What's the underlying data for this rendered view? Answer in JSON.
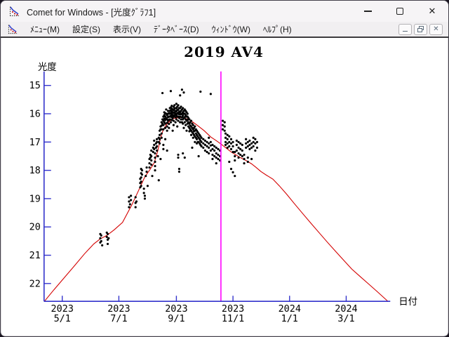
{
  "window": {
    "title": "Comet for Windows - [光度ｸﾞﾗﾌ1]",
    "caption_buttons": [
      "minimize",
      "maximize",
      "close"
    ]
  },
  "menubar": {
    "items": [
      {
        "label": "ﾒﾆｭｰ(M)"
      },
      {
        "label": "設定(S)"
      },
      {
        "label": "表示(V)"
      },
      {
        "label": "ﾃﾞｰﾀﾍﾞｰｽ(D)"
      },
      {
        "label": "ｳｨﾝﾄﾞｳ(W)"
      },
      {
        "label": "ﾍﾙﾌﾟ(H)"
      }
    ],
    "mdi_buttons": [
      "minimize",
      "restore",
      "close"
    ]
  },
  "chart_data": {
    "type": "scatter",
    "title": "2019 AV4",
    "xlabel": "日付",
    "ylabel": "光度",
    "y_axis": {
      "ticks": [
        15,
        16,
        17,
        18,
        19,
        20,
        21,
        22
      ],
      "inverted": true
    },
    "x_axis": {
      "ticks": [
        {
          "year": "2023",
          "date": "5/1",
          "day": 0
        },
        {
          "year": "2023",
          "date": "7/1",
          "day": 61
        },
        {
          "year": "2023",
          "date": "9/1",
          "day": 123
        },
        {
          "year": "2023",
          "date": "11/1",
          "day": 184
        },
        {
          "year": "2024",
          "date": "1/1",
          "day": 245
        },
        {
          "year": "2024",
          "date": "3/1",
          "day": 306
        }
      ]
    },
    "colors": {
      "axis": "#3333cc",
      "curve": "#d40000",
      "points": "#000000",
      "marker_line": "#ff00ff",
      "text": "#000000"
    },
    "current_date_marker_day": 171,
    "model_curve": [
      [
        -19,
        22.62
      ],
      [
        -9,
        22.22
      ],
      [
        2,
        21.8
      ],
      [
        13,
        21.38
      ],
      [
        24,
        20.95
      ],
      [
        34,
        20.6
      ],
      [
        41,
        20.42
      ],
      [
        48,
        20.3
      ],
      [
        56,
        20.1
      ],
      [
        65,
        19.84
      ],
      [
        75,
        19.22
      ],
      [
        82,
        18.73
      ],
      [
        89,
        18.23
      ],
      [
        94,
        18.0
      ],
      [
        99,
        17.74
      ],
      [
        103,
        17.3
      ],
      [
        106,
        16.85
      ],
      [
        109,
        16.55
      ],
      [
        112,
        16.4
      ],
      [
        116,
        16.25
      ],
      [
        120,
        16.17
      ],
      [
        124,
        16.14
      ],
      [
        130,
        16.13
      ],
      [
        136,
        16.2
      ],
      [
        141,
        16.3
      ],
      [
        146,
        16.42
      ],
      [
        153,
        16.6
      ],
      [
        160,
        16.82
      ],
      [
        166,
        16.95
      ],
      [
        171,
        17.07
      ],
      [
        177,
        17.22
      ],
      [
        182,
        17.35
      ],
      [
        188,
        17.47
      ],
      [
        193,
        17.57
      ],
      [
        199,
        17.67
      ],
      [
        204,
        17.77
      ],
      [
        209,
        17.9
      ],
      [
        214,
        18.04
      ],
      [
        220,
        18.17
      ],
      [
        227,
        18.31
      ],
      [
        234,
        18.55
      ],
      [
        242,
        18.85
      ],
      [
        250,
        19.17
      ],
      [
        259,
        19.52
      ],
      [
        268,
        19.87
      ],
      [
        277,
        20.21
      ],
      [
        286,
        20.55
      ],
      [
        295,
        20.88
      ],
      [
        304,
        21.2
      ],
      [
        312,
        21.49
      ],
      [
        321,
        21.75
      ],
      [
        330,
        22.01
      ],
      [
        340,
        22.3
      ],
      [
        351,
        22.65
      ]
    ],
    "observation_stacks": [
      [
        41,
        [
          20.25,
          20.4,
          20.55
        ]
      ],
      [
        42,
        [
          20.3,
          20.5
        ]
      ],
      [
        43,
        [
          20.65
        ]
      ],
      [
        48,
        [
          20.2,
          20.35
        ]
      ],
      [
        49,
        [
          20.25,
          20.45,
          20.6
        ]
      ],
      [
        50,
        [
          20.4
        ]
      ],
      [
        72,
        [
          18.95,
          19.1,
          19.3
        ]
      ],
      [
        73,
        [
          19.2
        ]
      ],
      [
        74,
        [
          18.9,
          19.05
        ]
      ],
      [
        79,
        [
          18.95,
          19.15,
          19.3
        ]
      ],
      [
        80,
        [
          19.1
        ]
      ],
      [
        84,
        [
          18.3,
          18.45,
          18.6
        ]
      ],
      [
        85,
        [
          17.95,
          18.1,
          18.25,
          18.4,
          18.55
        ]
      ],
      [
        86,
        [
          18.0,
          18.15
        ]
      ],
      [
        88,
        [
          18.65,
          18.8
        ]
      ],
      [
        89,
        [
          18.9,
          19.0
        ]
      ],
      [
        90,
        [
          18.2
        ]
      ],
      [
        91,
        [
          17.9,
          18.05
        ]
      ],
      [
        92,
        [
          18.55
        ]
      ],
      [
        94,
        [
          17.6,
          17.75,
          17.9
        ]
      ],
      [
        95,
        [
          17.45,
          17.55
        ]
      ],
      [
        96,
        [
          17.3,
          17.5,
          17.65,
          17.8
        ]
      ],
      [
        97,
        [
          18.2
        ]
      ],
      [
        98,
        [
          17.2,
          17.35
        ]
      ],
      [
        99,
        [
          16.95,
          17.1,
          17.25
        ]
      ],
      [
        100,
        [
          17.4,
          17.55,
          17.7,
          17.85,
          18.0
        ]
      ],
      [
        101,
        [
          17.05,
          17.2
        ]
      ],
      [
        102,
        [
          16.9,
          17.0,
          17.15,
          17.3
        ]
      ],
      [
        103,
        [
          17.5
        ]
      ],
      [
        104,
        [
          16.85,
          17.0,
          18.35
        ]
      ],
      [
        105,
        [
          16.6,
          16.75,
          16.9,
          17.05
        ]
      ],
      [
        106,
        [
          16.45,
          16.55,
          17.6
        ]
      ],
      [
        107,
        [
          16.3,
          16.42,
          16.55,
          16.7,
          16.85
        ]
      ],
      [
        108,
        [
          15.27,
          16.2,
          16.35
        ]
      ],
      [
        109,
        [
          16.1,
          16.25,
          16.4,
          16.55,
          17.1,
          17.25
        ]
      ],
      [
        110,
        [
          15.95,
          16.05,
          16.18,
          16.3
        ]
      ],
      [
        111,
        [
          15.98,
          16.1,
          16.22,
          16.35,
          16.5,
          16.9
        ]
      ],
      [
        112,
        [
          15.85,
          16.0,
          16.15
        ]
      ],
      [
        113,
        [
          16.05,
          16.2,
          16.32,
          16.45,
          16.6,
          17.3
        ]
      ],
      [
        114,
        [
          15.9,
          16.0,
          16.12,
          16.25
        ]
      ],
      [
        115,
        [
          15.98,
          16.1,
          16.22,
          16.36,
          16.5
        ]
      ],
      [
        116,
        [
          15.8,
          15.9,
          16.0,
          16.1,
          16.2
        ]
      ],
      [
        117,
        [
          15.2,
          15.78,
          15.88,
          15.98,
          16.08,
          16.3
        ]
      ],
      [
        118,
        [
          15.72,
          15.82,
          15.92,
          16.02,
          16.12,
          16.22
        ]
      ],
      [
        119,
        [
          15.85,
          15.95,
          16.05,
          16.15,
          16.6
        ]
      ],
      [
        120,
        [
          15.75,
          15.87,
          15.97,
          16.1,
          16.25,
          16.4
        ]
      ],
      [
        121,
        [
          15.7,
          15.82,
          15.95,
          16.05
        ]
      ],
      [
        122,
        [
          15.8,
          15.9,
          16.0,
          16.12,
          16.3
        ]
      ],
      [
        123,
        [
          15.65,
          15.8,
          15.92,
          16.05,
          16.2
        ]
      ],
      [
        124,
        [
          15.75,
          15.87,
          16.0,
          16.1,
          16.45
        ]
      ],
      [
        125,
        [
          15.7,
          15.85,
          15.97,
          16.1,
          16.25,
          17.45,
          17.55
        ]
      ],
      [
        126,
        [
          15.8,
          15.92,
          16.02,
          16.15,
          17.95,
          18.05
        ]
      ],
      [
        127,
        [
          15.35,
          15.8,
          15.95,
          16.1,
          16.3
        ]
      ],
      [
        128,
        [
          15.75,
          15.9,
          16.02,
          16.2
        ]
      ],
      [
        129,
        [
          15.15,
          15.85,
          16.0,
          16.12,
          16.3
        ]
      ],
      [
        130,
        [
          15.8,
          15.95,
          16.07,
          16.2,
          16.35,
          17.4
        ]
      ],
      [
        131,
        [
          15.25,
          15.9,
          16.0,
          16.15,
          16.5
        ]
      ],
      [
        132,
        [
          15.85,
          16.0,
          16.12,
          16.3,
          17.55
        ]
      ],
      [
        133,
        [
          15.9,
          16.05,
          16.2,
          16.4
        ]
      ],
      [
        134,
        [
          15.95,
          16.1,
          16.25,
          16.6
        ]
      ],
      [
        135,
        [
          16.0,
          16.1,
          16.22,
          16.35
        ]
      ],
      [
        136,
        [
          16.15,
          16.3,
          16.45
        ]
      ],
      [
        137,
        [
          16.2,
          16.35,
          16.5,
          16.62
        ]
      ],
      [
        138,
        [
          16.3,
          16.42,
          16.55
        ]
      ],
      [
        139,
        [
          16.25,
          16.45,
          16.6,
          16.75
        ]
      ],
      [
        140,
        [
          16.35,
          16.5,
          16.65,
          17.2
        ]
      ],
      [
        141,
        [
          16.4,
          16.55,
          16.7,
          16.85
        ]
      ],
      [
        142,
        [
          16.5,
          16.62,
          16.75
        ]
      ],
      [
        143,
        [
          16.45,
          16.6,
          16.8,
          17.0
        ]
      ],
      [
        144,
        [
          16.55,
          16.7,
          16.85
        ]
      ],
      [
        145,
        [
          16.6,
          16.75,
          16.9,
          17.05
        ]
      ],
      [
        146,
        [
          16.65,
          16.8,
          17.0
        ]
      ],
      [
        147,
        [
          16.7,
          16.85,
          17.0,
          17.5
        ]
      ],
      [
        148,
        [
          16.75,
          16.9,
          17.05
        ]
      ],
      [
        149,
        [
          15.22,
          16.8,
          16.95,
          17.1
        ]
      ],
      [
        150,
        [
          16.85,
          17.0,
          17.15
        ]
      ],
      [
        152,
        [
          16.9,
          17.05,
          17.2
        ]
      ],
      [
        154,
        [
          16.95,
          17.1,
          17.3
        ]
      ],
      [
        156,
        [
          17.0,
          17.15,
          17.35
        ]
      ],
      [
        158,
        [
          16.85,
          17.05,
          17.2,
          17.4
        ]
      ],
      [
        160,
        [
          15.3,
          17.0,
          17.12,
          17.3
        ]
      ],
      [
        162,
        [
          17.1,
          17.25,
          17.45,
          17.6
        ]
      ],
      [
        164,
        [
          17.15,
          17.3,
          17.5
        ]
      ],
      [
        166,
        [
          17.2,
          17.4,
          17.55,
          17.75
        ]
      ],
      [
        168,
        [
          17.25,
          17.45,
          17.6
        ]
      ],
      [
        170,
        [
          17.3,
          17.5,
          17.65
        ]
      ],
      [
        173,
        [
          16.25,
          16.4,
          16.55
        ]
      ],
      [
        175,
        [
          16.3,
          16.45,
          16.6
        ]
      ],
      [
        176,
        [
          16.7,
          16.85,
          17.0,
          17.1
        ]
      ],
      [
        178,
        [
          16.75,
          16.9,
          17.05,
          17.2
        ]
      ],
      [
        180,
        [
          16.8,
          17.0,
          17.15,
          17.7
        ]
      ],
      [
        182,
        [
          16.9,
          17.05,
          17.25,
          17.95
        ]
      ],
      [
        184,
        [
          17.0,
          17.15,
          17.35,
          18.07
        ]
      ],
      [
        186,
        [
          17.35,
          17.5,
          17.65,
          18.2
        ]
      ],
      [
        188,
        [
          16.95,
          17.1,
          17.3
        ]
      ],
      [
        190,
        [
          17.0,
          17.2,
          17.4,
          17.55
        ]
      ],
      [
        192,
        [
          17.05,
          17.25,
          17.45
        ]
      ],
      [
        194,
        [
          17.1,
          17.3,
          17.5
        ]
      ],
      [
        196,
        [
          17.45,
          17.6,
          17.75
        ]
      ],
      [
        198,
        [
          16.9,
          17.05,
          17.2
        ]
      ],
      [
        200,
        [
          17.0,
          17.15,
          17.55,
          17.7
        ]
      ],
      [
        202,
        [
          16.95,
          17.1,
          17.25
        ]
      ],
      [
        204,
        [
          17.05,
          17.2,
          17.6
        ]
      ],
      [
        206,
        [
          16.85,
          17.0,
          17.15
        ]
      ],
      [
        208,
        [
          16.9,
          17.05,
          17.3
        ]
      ],
      [
        210,
        [
          17.0,
          17.2
        ]
      ]
    ]
  }
}
